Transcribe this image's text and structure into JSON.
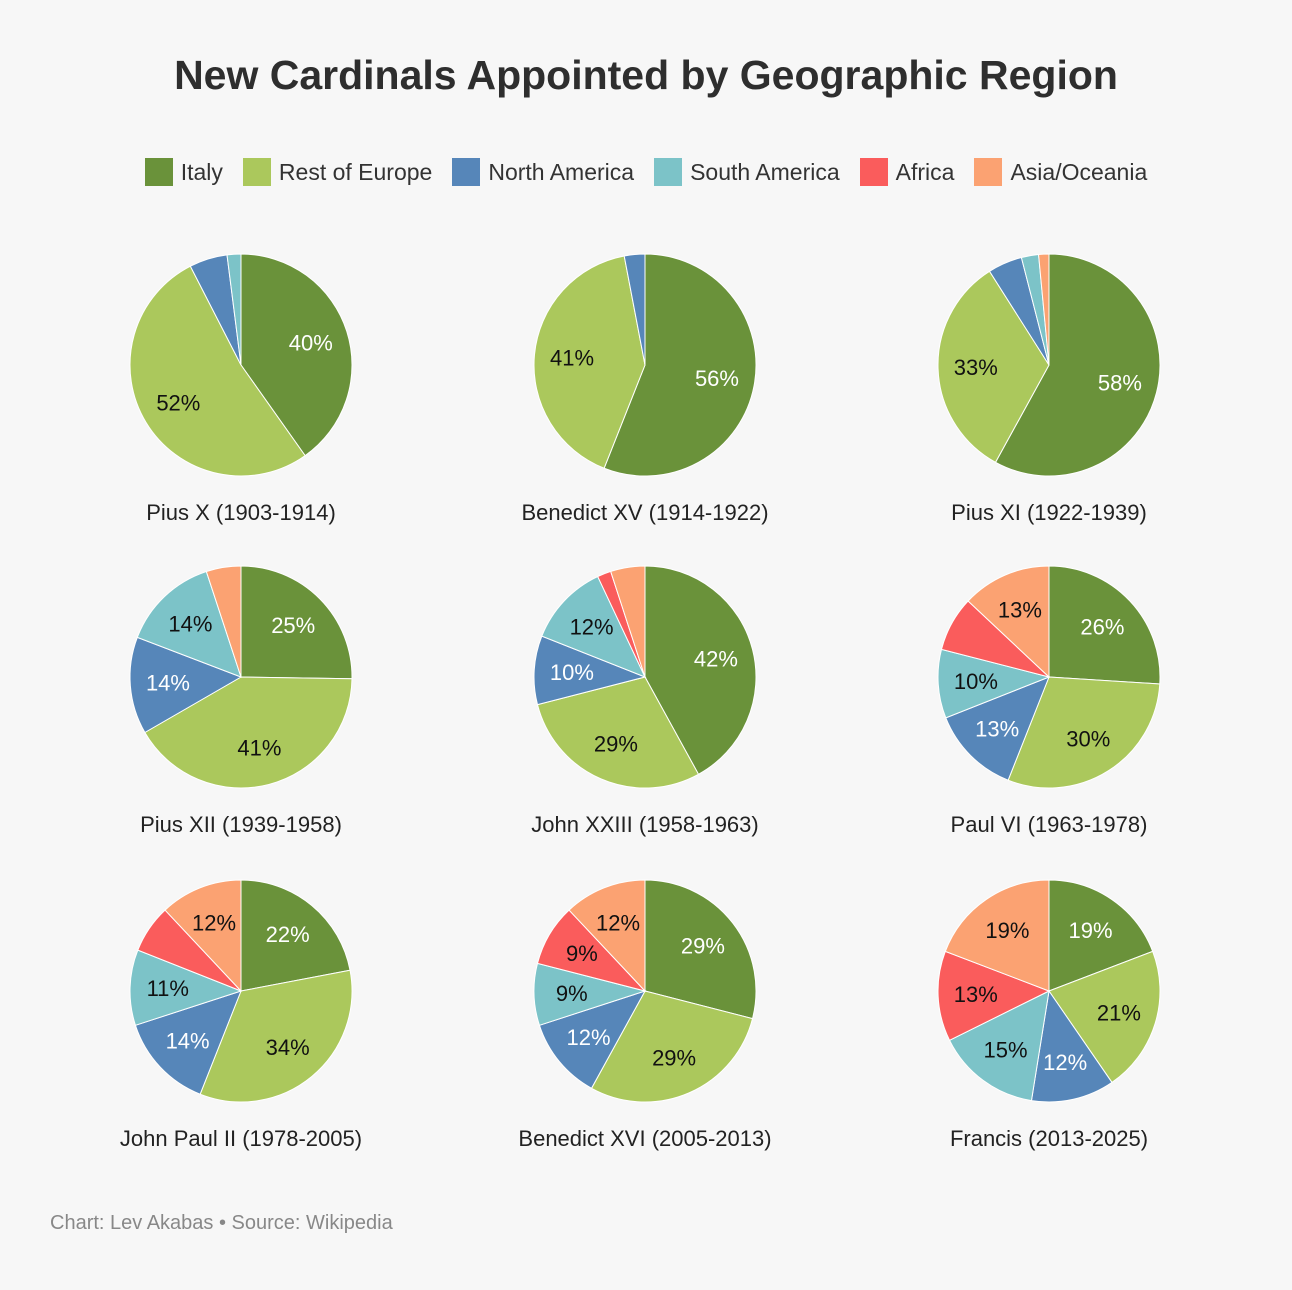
{
  "title": "New Cardinals Appointed by Geographic Region",
  "footer": "Chart: Lev Akabas • Source: Wikipedia",
  "legend": [
    {
      "name": "Italy",
      "color": "#6a923a"
    },
    {
      "name": "Rest of Europe",
      "color": "#abc85c"
    },
    {
      "name": "North America",
      "color": "#5686b9"
    },
    {
      "name": "South America",
      "color": "#7cc3c8"
    },
    {
      "name": "Africa",
      "color": "#fa5c5c"
    },
    {
      "name": "Asia/Oceania",
      "color": "#fba272"
    }
  ],
  "chart_data": [
    {
      "type": "pie",
      "title": "Pius X (1903-1914)",
      "categories": [
        "Italy",
        "Rest of Europe",
        "North America",
        "South America",
        "Africa",
        "Asia/Oceania"
      ],
      "values": [
        40,
        52,
        5.5,
        2,
        0,
        0
      ],
      "labels": [
        "40%",
        "52%",
        "",
        "",
        "",
        ""
      ]
    },
    {
      "type": "pie",
      "title": "Benedict XV (1914-1922)",
      "categories": [
        "Italy",
        "Rest of Europe",
        "North America",
        "South America",
        "Africa",
        "Asia/Oceania"
      ],
      "values": [
        56,
        41,
        3,
        0,
        0,
        0
      ],
      "labels": [
        "56%",
        "41%",
        "",
        "",
        "",
        ""
      ]
    },
    {
      "type": "pie",
      "title": "Pius XI (1922-1939)",
      "categories": [
        "Italy",
        "Rest of Europe",
        "North America",
        "South America",
        "Africa",
        "Asia/Oceania"
      ],
      "values": [
        58,
        33,
        5,
        2.5,
        0,
        1.5
      ],
      "labels": [
        "58%",
        "33%",
        "",
        "",
        "",
        ""
      ]
    },
    {
      "type": "pie",
      "title": "Pius XII (1939-1958)",
      "categories": [
        "Italy",
        "Rest of Europe",
        "North America",
        "South America",
        "Africa",
        "Asia/Oceania"
      ],
      "values": [
        25,
        41,
        14,
        14,
        0,
        5
      ],
      "labels": [
        "25%",
        "41%",
        "14%",
        "14%",
        "",
        ""
      ]
    },
    {
      "type": "pie",
      "title": "John XXIII (1958-1963)",
      "categories": [
        "Italy",
        "Rest of Europe",
        "North America",
        "South America",
        "Africa",
        "Asia/Oceania"
      ],
      "values": [
        42,
        29,
        10,
        12,
        2,
        5
      ],
      "labels": [
        "42%",
        "29%",
        "10%",
        "12%",
        "",
        ""
      ]
    },
    {
      "type": "pie",
      "title": "Paul VI (1963-1978)",
      "categories": [
        "Italy",
        "Rest of Europe",
        "North America",
        "South America",
        "Africa",
        "Asia/Oceania"
      ],
      "values": [
        26,
        30,
        13,
        10,
        8,
        13
      ],
      "labels": [
        "26%",
        "30%",
        "13%",
        "10%",
        "",
        "13%"
      ]
    },
    {
      "type": "pie",
      "title": "John Paul II (1978-2005)",
      "categories": [
        "Italy",
        "Rest of Europe",
        "North America",
        "South America",
        "Africa",
        "Asia/Oceania"
      ],
      "values": [
        22,
        34,
        14,
        11,
        7,
        12
      ],
      "labels": [
        "22%",
        "34%",
        "14%",
        "11%",
        "",
        "12%"
      ]
    },
    {
      "type": "pie",
      "title": "Benedict XVI (2005-2013)",
      "categories": [
        "Italy",
        "Rest of Europe",
        "North America",
        "South America",
        "Africa",
        "Asia/Oceania"
      ],
      "values": [
        29,
        29,
        12,
        9,
        9,
        12
      ],
      "labels": [
        "29%",
        "29%",
        "12%",
        "9%",
        "9%",
        "12%"
      ]
    },
    {
      "type": "pie",
      "title": "Francis (2013-2025)",
      "categories": [
        "Italy",
        "Rest of Europe",
        "North America",
        "South America",
        "Africa",
        "Asia/Oceania"
      ],
      "values": [
        19,
        21,
        12,
        15,
        13,
        19
      ],
      "labels": [
        "19%",
        "21%",
        "12%",
        "15%",
        "13%",
        "19%"
      ]
    }
  ]
}
